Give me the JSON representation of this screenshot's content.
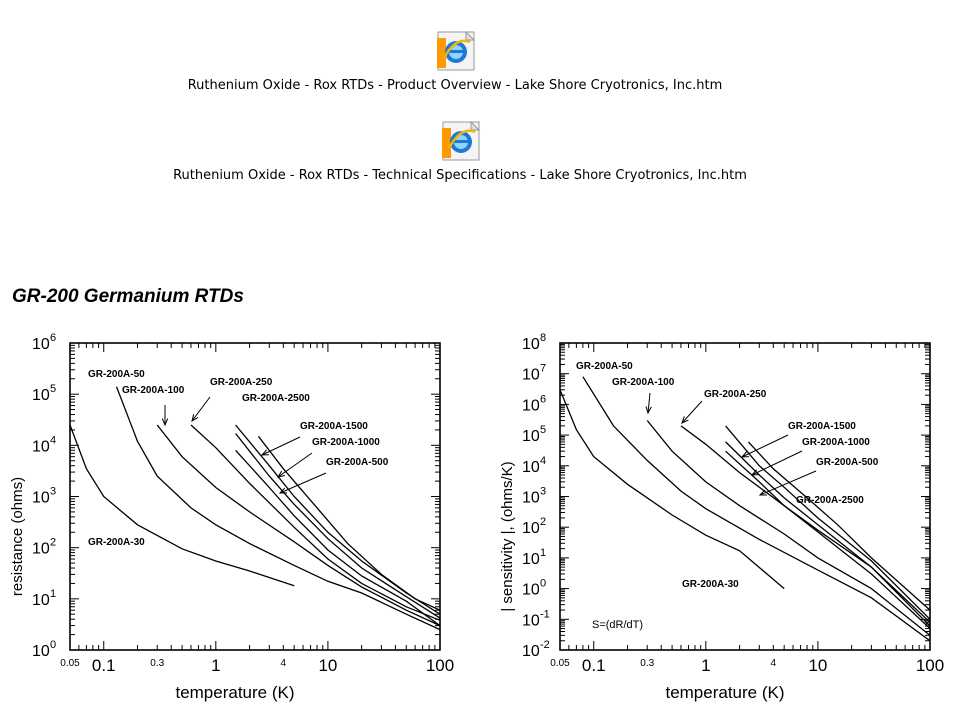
{
  "files": [
    {
      "label": "Ruthenium Oxide - Rox RTDs - Product Overview - Lake Shore Cryotronics, Inc.htm",
      "icon": "internet-explorer-icon"
    },
    {
      "label": "Ruthenium Oxide - Rox RTDs - Technical Specifications - Lake Shore Cryotronics, Inc.htm",
      "icon": "internet-explorer-icon"
    }
  ],
  "section_title": "GR-200 Germanium RTDs",
  "chart_data": [
    {
      "type": "line",
      "xlabel": "temperature (K)",
      "ylabel": "resistance (ohms)",
      "x_scale": "log",
      "y_scale": "log",
      "xlim": [
        0.05,
        100
      ],
      "ylim": [
        1,
        1000000
      ],
      "x_ticks": [
        {
          "v": 0.05,
          "label": "0.05"
        },
        {
          "v": 0.1,
          "label": "0.1"
        },
        {
          "v": 0.3,
          "label": "0.3"
        },
        {
          "v": 1,
          "label": "1"
        },
        {
          "v": 4,
          "label": "4"
        },
        {
          "v": 10,
          "label": "10"
        },
        {
          "v": 100,
          "label": "100"
        }
      ],
      "y_ticks": [
        {
          "v": 1,
          "label": "10",
          "exp": "0"
        },
        {
          "v": 10,
          "label": "10",
          "exp": "1"
        },
        {
          "v": 100,
          "label": "10",
          "exp": "2"
        },
        {
          "v": 1000,
          "label": "10",
          "exp": "3"
        },
        {
          "v": 10000,
          "label": "10",
          "exp": "4"
        },
        {
          "v": 100000,
          "label": "10",
          "exp": "5"
        },
        {
          "v": 1000000,
          "label": "10",
          "exp": "6"
        }
      ],
      "grid": false,
      "series": [
        {
          "name": "GR-200A-30",
          "points": [
            [
              0.05,
              25000
            ],
            [
              0.07,
              3500
            ],
            [
              0.1,
              1000
            ],
            [
              0.2,
              280
            ],
            [
              0.5,
              95
            ],
            [
              1,
              55
            ],
            [
              2,
              35
            ],
            [
              5,
              18
            ]
          ]
        },
        {
          "name": "GR-200A-50",
          "points": [
            [
              0.13,
              140000
            ],
            [
              0.2,
              12000
            ],
            [
              0.3,
              2500
            ],
            [
              0.6,
              600
            ],
            [
              1,
              280
            ],
            [
              2,
              120
            ],
            [
              5,
              45
            ],
            [
              10,
              22
            ],
            [
              20,
              13
            ],
            [
              50,
              5
            ],
            [
              100,
              2.5
            ]
          ]
        },
        {
          "name": "GR-200A-100",
          "points": [
            [
              0.3,
              25000
            ],
            [
              0.5,
              6000
            ],
            [
              1,
              1500
            ],
            [
              2,
              500
            ],
            [
              5,
              130
            ],
            [
              10,
              45
            ],
            [
              20,
              17
            ],
            [
              50,
              6
            ],
            [
              100,
              3
            ]
          ]
        },
        {
          "name": "GR-200A-250",
          "points": [
            [
              0.6,
              25000
            ],
            [
              1,
              9000
            ],
            [
              2,
              1800
            ],
            [
              5,
              250
            ],
            [
              10,
              60
            ],
            [
              20,
              20
            ],
            [
              50,
              7
            ],
            [
              100,
              3.8
            ]
          ]
        },
        {
          "name": "GR-200A-500",
          "points": [
            [
              1.5,
              8000
            ],
            [
              3,
              1500
            ],
            [
              5,
              420
            ],
            [
              10,
              90
            ],
            [
              20,
              28
            ],
            [
              50,
              9
            ],
            [
              100,
              3
            ]
          ]
        },
        {
          "name": "GR-200A-1000",
          "points": [
            [
              1.5,
              17000
            ],
            [
              3,
              2500
            ],
            [
              5,
              700
            ],
            [
              10,
              150
            ],
            [
              20,
              40
            ],
            [
              50,
              11
            ],
            [
              100,
              4.2
            ]
          ]
        },
        {
          "name": "GR-200A-1500",
          "points": [
            [
              1.5,
              25000
            ],
            [
              3,
              4000
            ],
            [
              5,
              1000
            ],
            [
              10,
              200
            ],
            [
              20,
              55
            ],
            [
              50,
              13
            ],
            [
              100,
              5
            ]
          ]
        },
        {
          "name": "GR-200A-2500",
          "points": [
            [
              2.4,
              15000
            ],
            [
              4,
              3500
            ],
            [
              8,
              600
            ],
            [
              15,
              120
            ],
            [
              30,
              30
            ],
            [
              60,
              10
            ],
            [
              100,
              6
            ]
          ]
        }
      ]
    },
    {
      "type": "line",
      "xlabel": "temperature (K)",
      "ylabel": "| sensitivity |, (ohms/K)",
      "annotation": "S=(dR/dT)",
      "x_scale": "log",
      "y_scale": "log",
      "xlim": [
        0.05,
        100
      ],
      "ylim": [
        0.01,
        100000000
      ],
      "x_ticks": [
        {
          "v": 0.05,
          "label": "0.05"
        },
        {
          "v": 0.1,
          "label": "0.1"
        },
        {
          "v": 0.3,
          "label": "0.3"
        },
        {
          "v": 1,
          "label": "1"
        },
        {
          "v": 4,
          "label": "4"
        },
        {
          "v": 10,
          "label": "10"
        },
        {
          "v": 100,
          "label": "100"
        }
      ],
      "y_ticks": [
        {
          "v": 0.01,
          "label": "10",
          "exp": "-2"
        },
        {
          "v": 0.1,
          "label": "10",
          "exp": "-1"
        },
        {
          "v": 1,
          "label": "10",
          "exp": "0"
        },
        {
          "v": 10,
          "label": "10",
          "exp": "1"
        },
        {
          "v": 100,
          "label": "10",
          "exp": "2"
        },
        {
          "v": 1000,
          "label": "10",
          "exp": "3"
        },
        {
          "v": 10000,
          "label": "10",
          "exp": "4"
        },
        {
          "v": 100000,
          "label": "10",
          "exp": "5"
        },
        {
          "v": 1000000,
          "label": "10",
          "exp": "6"
        },
        {
          "v": 10000000,
          "label": "10",
          "exp": "7"
        },
        {
          "v": 100000000,
          "label": "10",
          "exp": "8"
        }
      ],
      "grid": false,
      "series": [
        {
          "name": "GR-200A-30",
          "points": [
            [
              0.05,
              3000000
            ],
            [
              0.07,
              150000
            ],
            [
              0.1,
              20000
            ],
            [
              0.2,
              2500
            ],
            [
              0.5,
              250
            ],
            [
              1,
              55
            ],
            [
              2,
              17
            ],
            [
              5,
              1
            ]
          ]
        },
        {
          "name": "GR-200A-50",
          "points": [
            [
              0.08,
              8000000
            ],
            [
              0.15,
              200000
            ],
            [
              0.3,
              15000
            ],
            [
              0.6,
              1500
            ],
            [
              1,
              400
            ],
            [
              3,
              40
            ],
            [
              10,
              4
            ],
            [
              30,
              0.5
            ],
            [
              100,
              0.02
            ]
          ]
        },
        {
          "name": "GR-200A-100",
          "points": [
            [
              0.3,
              300000
            ],
            [
              0.5,
              30000
            ],
            [
              1,
              3000
            ],
            [
              2,
              500
            ],
            [
              5,
              60
            ],
            [
              10,
              10
            ],
            [
              30,
              1
            ],
            [
              100,
              0.03
            ]
          ]
        },
        {
          "name": "GR-200A-250",
          "points": [
            [
              0.6,
              200000
            ],
            [
              1,
              50000
            ],
            [
              2,
              6000
            ],
            [
              5,
              500
            ],
            [
              10,
              80
            ],
            [
              30,
              5
            ],
            [
              100,
              0.06
            ]
          ]
        },
        {
          "name": "GR-200A-500",
          "points": [
            [
              1.5,
              30000
            ],
            [
              3,
              3000
            ],
            [
              5,
              500
            ],
            [
              10,
              70
            ],
            [
              30,
              3
            ],
            [
              100,
              0.05
            ]
          ]
        },
        {
          "name": "GR-200A-1000",
          "points": [
            [
              1.5,
              60000
            ],
            [
              3,
              5000
            ],
            [
              5,
              900
            ],
            [
              10,
              120
            ],
            [
              30,
              5
            ],
            [
              100,
              0.08
            ]
          ]
        },
        {
          "name": "GR-200A-1500",
          "points": [
            [
              1.5,
              200000
            ],
            [
              3,
              10000
            ],
            [
              5,
              2000
            ],
            [
              10,
              200
            ],
            [
              30,
              8
            ],
            [
              100,
              0.1
            ]
          ]
        },
        {
          "name": "GR-200A-2500",
          "points": [
            [
              2.4,
              60000
            ],
            [
              4,
              8000
            ],
            [
              8,
              900
            ],
            [
              15,
              120
            ],
            [
              30,
              10
            ],
            [
              100,
              0.2
            ]
          ]
        }
      ]
    }
  ]
}
